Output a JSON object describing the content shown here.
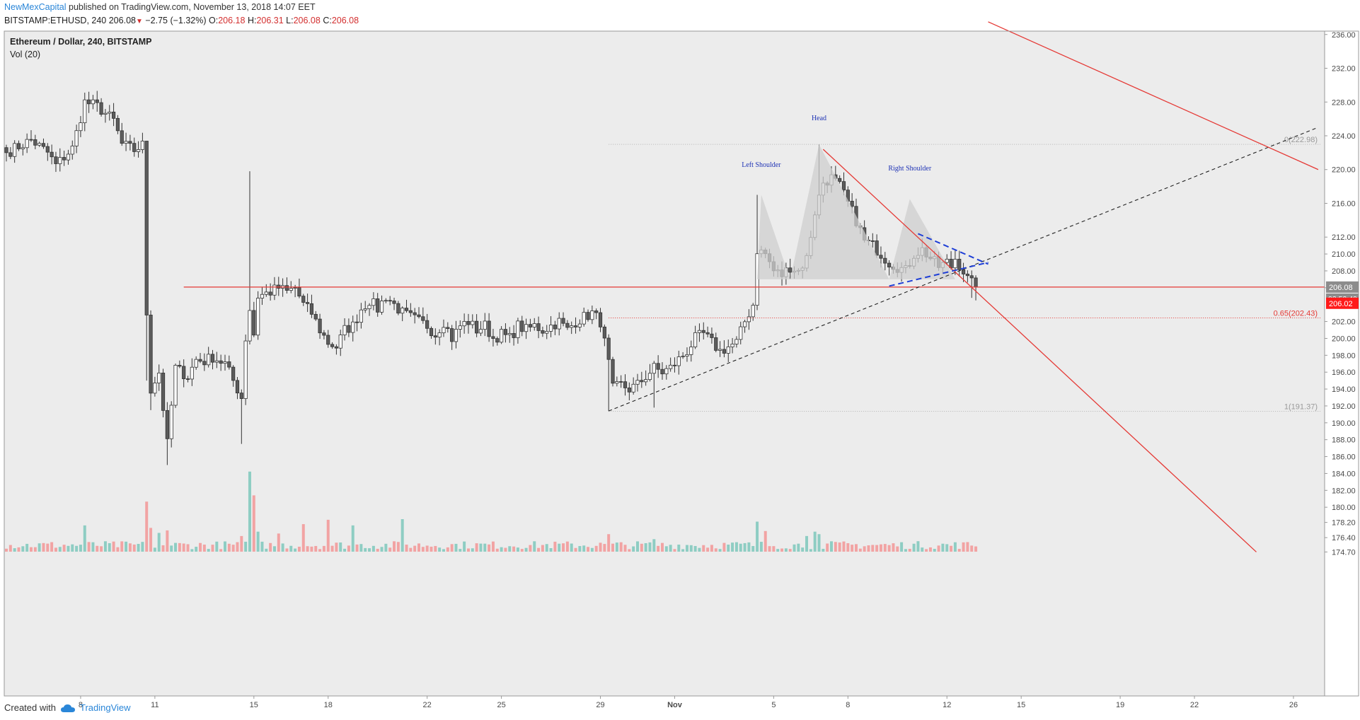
{
  "header": {
    "author": "NewMexCapital",
    "published": "published on TradingView.com, November 13, 2018 14:07 EET"
  },
  "ohlc": {
    "symbol": "BITSTAMP:ETHUSD, 240",
    "last": "206.08",
    "arrow": "▼",
    "change": "−2.75 (−1.32%)",
    "o_label": "O:",
    "o": "206.18",
    "h_label": "H:",
    "h": "206.31",
    "l_label": "L:",
    "l": "206.08",
    "c_label": "C:",
    "c": "206.08"
  },
  "legend": {
    "title": "Ethereum / Dollar, 240, BITSTAMP",
    "volume": "Vol (20)"
  },
  "footer": {
    "created_with": "Created with",
    "brand": "TradingView"
  },
  "colors": {
    "up": "#ffffff",
    "down": "#5c5c5c",
    "wick": "#333333",
    "vol_up": "#8ecdc3",
    "vol_down": "#f2a3a3",
    "trend": "#e53935",
    "pattern_fill": "#cfcfcf",
    "pattern_text": "#1f33b5",
    "flag": "#1f3fd6",
    "price_tag_gray": "#8c8c8c",
    "price_tag_red": "#ff1a1a"
  },
  "chart_data": {
    "type": "candlestick",
    "title": "Ethereum / Dollar, 240, BITSTAMP",
    "ylim": [
      174.4,
      236.4
    ],
    "y_ticks": [
      "236.00",
      "232.00",
      "228.00",
      "224.00",
      "220.00",
      "216.00",
      "212.00",
      "210.00",
      "208.00",
      "206.00",
      "202.00",
      "200.00",
      "198.00",
      "196.00",
      "194.00",
      "192.00",
      "190.00",
      "188.00",
      "186.00",
      "184.00",
      "182.00",
      "180.00",
      "178.20",
      "176.40",
      "174.70"
    ],
    "x_tick_labels": [
      {
        "label": "8",
        "idx": 18
      },
      {
        "label": "11",
        "idx": 36
      },
      {
        "label": "15",
        "idx": 60
      },
      {
        "label": "18",
        "idx": 78
      },
      {
        "label": "22",
        "idx": 102
      },
      {
        "label": "25",
        "idx": 120
      },
      {
        "label": "29",
        "idx": 144
      },
      {
        "label": "Nov",
        "idx": 162
      },
      {
        "label": "5",
        "idx": 186
      },
      {
        "label": "8",
        "idx": 204
      },
      {
        "label": "12",
        "idx": 228
      },
      {
        "label": "15",
        "idx": 246
      },
      {
        "label": "19",
        "idx": 270
      },
      {
        "label": "22",
        "idx": 288
      },
      {
        "label": "26",
        "idx": 312
      }
    ],
    "close_anchors": [
      [
        0,
        222.0
      ],
      [
        6,
        223.5
      ],
      [
        10,
        222.0
      ],
      [
        12,
        220.5
      ],
      [
        16,
        222.5
      ],
      [
        19,
        228.0
      ],
      [
        22,
        227.5
      ],
      [
        26,
        225.8
      ],
      [
        28,
        223.0
      ],
      [
        31,
        222.3
      ],
      [
        33,
        222.9
      ],
      [
        34,
        203.0
      ],
      [
        35,
        194.0
      ],
      [
        37,
        196.0
      ],
      [
        39,
        187.5
      ],
      [
        41,
        196.5
      ],
      [
        44,
        195.5
      ],
      [
        46,
        197.5
      ],
      [
        48,
        197.3
      ],
      [
        50,
        197.8
      ],
      [
        53,
        197.0
      ],
      [
        57,
        193.0
      ],
      [
        58,
        200.0
      ],
      [
        59,
        203.5
      ],
      [
        60,
        200.5
      ],
      [
        61,
        205.0
      ],
      [
        64,
        205.5
      ],
      [
        66,
        206.0
      ],
      [
        68,
        205.5
      ],
      [
        70,
        206.0
      ],
      [
        72,
        204.0
      ],
      [
        74,
        203.0
      ],
      [
        76,
        201.0
      ],
      [
        78,
        199.5
      ],
      [
        80,
        199.0
      ],
      [
        82,
        201.0
      ],
      [
        84,
        201.5
      ],
      [
        86,
        203.5
      ],
      [
        88,
        204.5
      ],
      [
        90,
        203.5
      ],
      [
        92,
        205.0
      ],
      [
        94,
        204.0
      ],
      [
        96,
        203.0
      ],
      [
        98,
        202.5
      ],
      [
        100,
        202.0
      ],
      [
        102,
        201.5
      ],
      [
        104,
        200.5
      ],
      [
        106,
        202.0
      ],
      [
        108,
        200.0
      ],
      [
        110,
        201.5
      ],
      [
        112,
        202.0
      ],
      [
        114,
        201.0
      ],
      [
        116,
        201.5
      ],
      [
        118,
        200.0
      ],
      [
        120,
        200.5
      ],
      [
        122,
        200.0
      ],
      [
        124,
        201.5
      ],
      [
        126,
        201.0
      ],
      [
        128,
        201.5
      ],
      [
        130,
        201.0
      ],
      [
        132,
        201.5
      ],
      [
        134,
        202.0
      ],
      [
        136,
        201.0
      ],
      [
        138,
        202.0
      ],
      [
        140,
        202.5
      ],
      [
        142,
        203.0
      ],
      [
        144,
        202.0
      ],
      [
        146,
        197.0
      ],
      [
        147,
        194.0
      ],
      [
        149,
        194.5
      ],
      [
        151,
        194.0
      ],
      [
        153,
        194.5
      ],
      [
        155,
        195.5
      ],
      [
        157,
        196.5
      ],
      [
        159,
        196.0
      ],
      [
        161,
        196.5
      ],
      [
        163,
        197.5
      ],
      [
        165,
        198.5
      ],
      [
        167,
        200.0
      ],
      [
        169,
        200.5
      ],
      [
        171,
        199.5
      ],
      [
        173,
        198.5
      ],
      [
        175,
        199.0
      ],
      [
        177,
        199.5
      ],
      [
        179,
        202.0
      ],
      [
        181,
        204.0
      ],
      [
        182,
        210.5
      ],
      [
        184,
        210.0
      ],
      [
        186,
        208.0
      ],
      [
        188,
        207.5
      ],
      [
        190,
        208.5
      ],
      [
        192,
        208.0
      ],
      [
        194,
        209.5
      ],
      [
        196,
        215.0
      ],
      [
        198,
        218.5
      ],
      [
        200,
        219.0
      ],
      [
        202,
        218.0
      ],
      [
        204,
        216.0
      ],
      [
        206,
        214.0
      ],
      [
        208,
        211.5
      ],
      [
        210,
        211.0
      ],
      [
        212,
        210.0
      ],
      [
        214,
        209.0
      ],
      [
        216,
        208.5
      ],
      [
        218,
        208.0
      ],
      [
        220,
        210.0
      ],
      [
        222,
        210.5
      ],
      [
        224,
        209.5
      ],
      [
        226,
        208.5
      ],
      [
        228,
        209.0
      ],
      [
        229,
        208.5
      ],
      [
        230,
        209.5
      ],
      [
        232,
        208.0
      ],
      [
        233,
        207.0
      ],
      [
        234,
        206.5
      ],
      [
        235,
        206.08
      ]
    ],
    "special_candles": [
      {
        "idx": 34,
        "high": 223.0,
        "low": 195.0
      },
      {
        "idx": 35,
        "low": 191.5
      },
      {
        "idx": 39,
        "low": 185.0
      },
      {
        "idx": 57,
        "low": 187.5
      },
      {
        "idx": 59,
        "high": 219.8
      },
      {
        "idx": 146,
        "low": 191.4
      },
      {
        "idx": 157,
        "low": 191.8
      },
      {
        "idx": 182,
        "high": 217.0
      },
      {
        "idx": 197,
        "high": 222.98
      },
      {
        "idx": 234,
        "low": 204.8
      },
      {
        "idx": 235,
        "low": 204.5
      }
    ],
    "volume_ylim": [
      0,
      8.0
    ],
    "volume_spikes": [
      {
        "idx": 19,
        "v": 4.2
      },
      {
        "idx": 34,
        "v": 8.0
      },
      {
        "idx": 35,
        "v": 3.8
      },
      {
        "idx": 37,
        "v": 3.0
      },
      {
        "idx": 39,
        "v": 3.4
      },
      {
        "idx": 57,
        "v": 2.5
      },
      {
        "idx": 59,
        "v": 12.8
      },
      {
        "idx": 60,
        "v": 9.0
      },
      {
        "idx": 61,
        "v": 3.2
      },
      {
        "idx": 66,
        "v": 2.9
      },
      {
        "idx": 72,
        "v": 4.4
      },
      {
        "idx": 78,
        "v": 5.1
      },
      {
        "idx": 84,
        "v": 4.2
      },
      {
        "idx": 96,
        "v": 5.2
      },
      {
        "idx": 146,
        "v": 2.8
      },
      {
        "idx": 157,
        "v": 2.0
      },
      {
        "idx": 182,
        "v": 4.8
      },
      {
        "idx": 184,
        "v": 3.3
      },
      {
        "idx": 194,
        "v": 2.5
      },
      {
        "idx": 196,
        "v": 3.2
      },
      {
        "idx": 197,
        "v": 2.8
      }
    ],
    "annotations": {
      "head": "Head",
      "left_shoulder": "Left Shoulder",
      "right_shoulder": "Right Shoulder",
      "fib_0": "0(222.98)",
      "fib_065": "0.65(202.43)",
      "fib_1": "1(191.37)",
      "price_tag_last": "206.08",
      "price_tag_countdown": "03:52:40",
      "price_tag_red": "206.02"
    },
    "levels": {
      "horizontal_support": 206.08,
      "fib_0": 222.98,
      "fib_065": 202.43,
      "fib_1": 191.37
    },
    "lines": {
      "trend_down_upper": [
        [
          238,
          237.5
        ],
        [
          318,
          220.0
        ]
      ],
      "trend_down_neck": [
        [
          198,
          222.4
        ],
        [
          303,
          174.7
        ]
      ],
      "trend_up_dashed": [
        [
          146,
          191.4
        ],
        [
          318,
          225.0
        ]
      ],
      "support_from_idx": 43
    },
    "head_shoulders": {
      "left_shoulder": [
        [
          182,
          207.0
        ],
        [
          183,
          217.0
        ],
        [
          190,
          207.0
        ]
      ],
      "head": [
        [
          190,
          207.0
        ],
        [
          197,
          222.98
        ],
        [
          214,
          207.0
        ]
      ],
      "right_shoulder": [
        [
          214,
          207.0
        ],
        [
          219,
          216.5
        ],
        [
          230,
          207.0
        ]
      ]
    },
    "flag": {
      "upper": [
        [
          221,
          212.4
        ],
        [
          238,
          208.8
        ]
      ],
      "lower": [
        [
          214,
          206.2
        ],
        [
          238,
          209.0
        ]
      ]
    }
  }
}
